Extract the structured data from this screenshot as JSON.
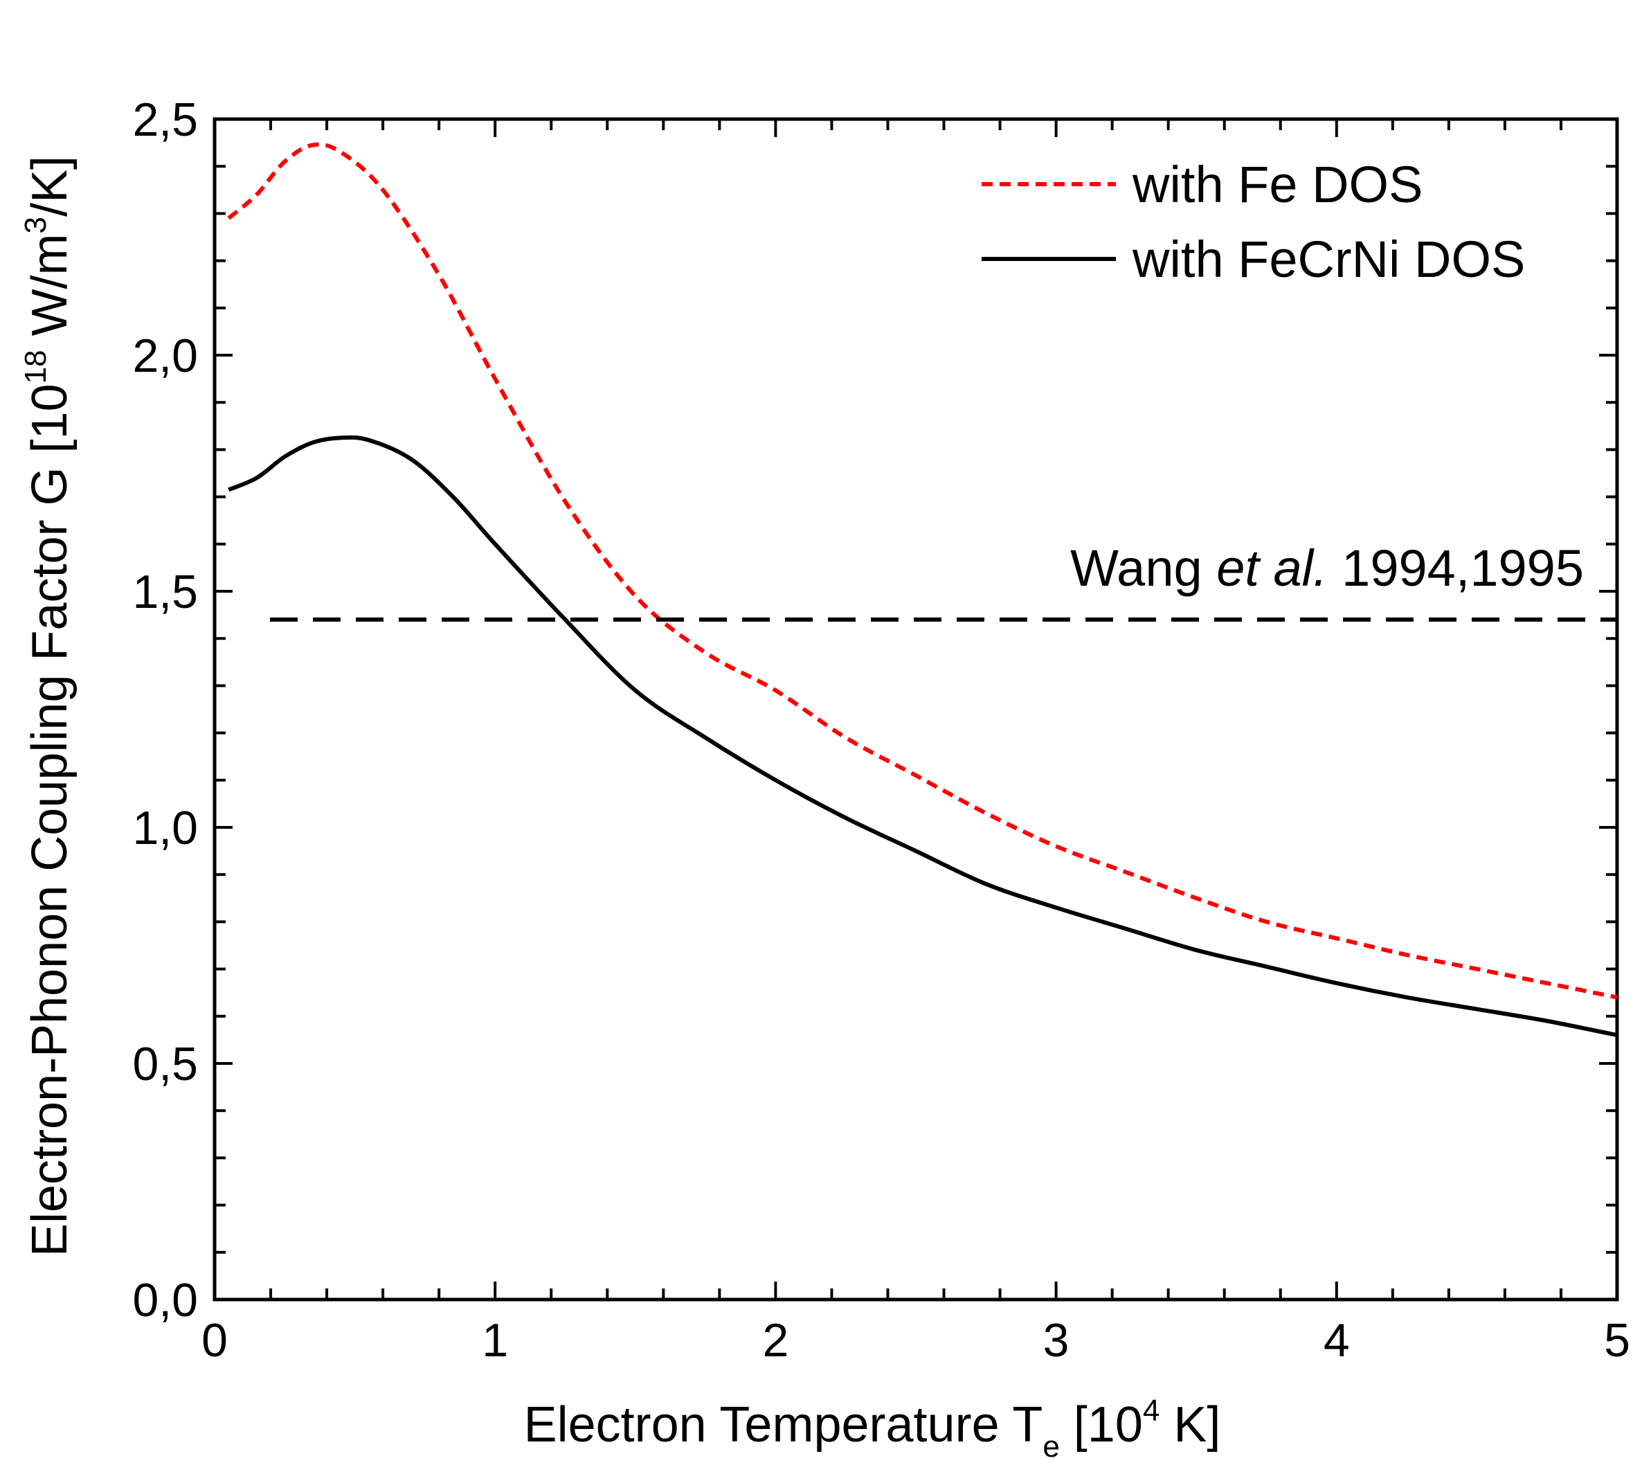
{
  "chart_data": {
    "type": "line",
    "title": "",
    "xlabel": {
      "main": "Electron Temperature T",
      "subscript": "e",
      "unit_open": " [10",
      "unit_exponent": "4",
      "unit_close": " K]"
    },
    "ylabel": {
      "main": "Electron-Phonon Coupling Factor G [10",
      "exp1": "18",
      "mid": " W/m",
      "exp2": "3",
      "close": "/K]"
    },
    "xlim": [
      0,
      5
    ],
    "ylim": [
      0,
      2.5
    ],
    "x_ticks": [
      0,
      1,
      2,
      3,
      4,
      5
    ],
    "x_tick_labels": [
      "0",
      "1",
      "2",
      "3",
      "4",
      "5"
    ],
    "y_ticks": [
      0,
      0.5,
      1.0,
      1.5,
      2.0,
      2.5
    ],
    "y_tick_labels": [
      "0,0",
      "0,5",
      "1,0",
      "1,5",
      "2,0",
      "2,5"
    ],
    "grid": false,
    "legend_position": "top-right",
    "series": [
      {
        "name": "with Fe DOS",
        "color": "#ff0000",
        "style": "dotted",
        "x": [
          0.05,
          0.15,
          0.25,
          0.35,
          0.45,
          0.6,
          0.8,
          1.0,
          1.25,
          1.5,
          1.75,
          2.0,
          2.25,
          2.5,
          2.75,
          3.0,
          3.25,
          3.5,
          3.75,
          4.0,
          4.25,
          4.5,
          4.75,
          5.0
        ],
        "y": [
          2.29,
          2.34,
          2.41,
          2.445,
          2.43,
          2.35,
          2.17,
          1.95,
          1.69,
          1.49,
          1.37,
          1.29,
          1.19,
          1.11,
          1.03,
          0.96,
          0.905,
          0.85,
          0.8,
          0.765,
          0.73,
          0.7,
          0.67,
          0.64
        ]
      },
      {
        "name": "with FeCrNi DOS",
        "color": "#000000",
        "style": "solid",
        "x": [
          0.05,
          0.15,
          0.25,
          0.35,
          0.45,
          0.55,
          0.7,
          0.85,
          1.0,
          1.25,
          1.5,
          1.75,
          2.0,
          2.25,
          2.5,
          2.75,
          3.0,
          3.25,
          3.5,
          3.75,
          4.0,
          4.25,
          4.5,
          4.75,
          5.0
        ],
        "y": [
          1.715,
          1.74,
          1.785,
          1.815,
          1.825,
          1.82,
          1.78,
          1.7,
          1.6,
          1.44,
          1.29,
          1.19,
          1.1,
          1.02,
          0.95,
          0.88,
          0.83,
          0.785,
          0.74,
          0.705,
          0.67,
          0.64,
          0.615,
          0.59,
          0.56
        ]
      }
    ],
    "reference_line": {
      "y": 1.44,
      "color": "#000000",
      "style": "dashed",
      "label_prefix": "Wang ",
      "label_italic": "et al.",
      "label_suffix": " 1994,1995"
    }
  }
}
